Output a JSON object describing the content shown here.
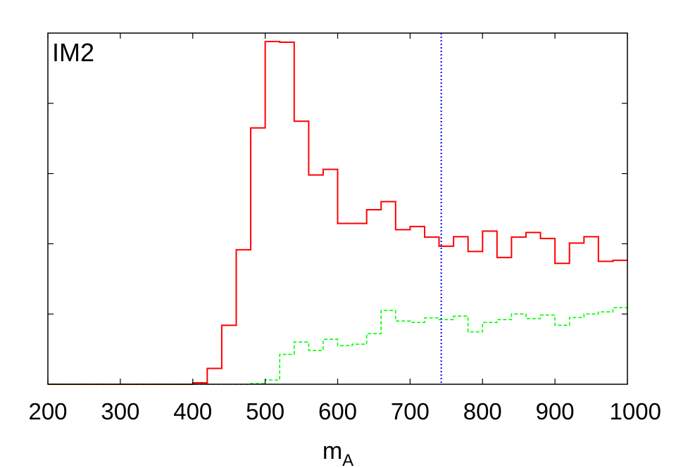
{
  "chart_data": {
    "type": "line",
    "title": "",
    "panel_label": "IM2",
    "xlabel": {
      "main": "m",
      "sub": "A"
    },
    "ylabel": "",
    "xlim": [
      200,
      1000
    ],
    "ylim": [
      0,
      1
    ],
    "x_ticks": [
      200,
      300,
      400,
      500,
      600,
      700,
      800,
      900,
      1000
    ],
    "y_tick_values": [
      0.2,
      0.4,
      0.6,
      0.8
    ],
    "y_tick_labels_shown": false,
    "grid": false,
    "legend": "none",
    "bin_edges": [
      200,
      220,
      240,
      260,
      280,
      300,
      320,
      340,
      360,
      380,
      400,
      420,
      440,
      460,
      480,
      500,
      520,
      540,
      560,
      580,
      600,
      620,
      640,
      660,
      680,
      700,
      720,
      740,
      760,
      780,
      800,
      820,
      840,
      860,
      880,
      900,
      920,
      940,
      960,
      980,
      1000
    ],
    "series": [
      {
        "style": "solid-step",
        "color": "#ff0000",
        "values": [
          0,
          0,
          0,
          0,
          0,
          0,
          0,
          0,
          0,
          0,
          0.004,
          0.045,
          0.168,
          0.383,
          0.73,
          0.976,
          0.974,
          0.749,
          0.596,
          0.612,
          0.458,
          0.458,
          0.497,
          0.52,
          0.44,
          0.449,
          0.419,
          0.393,
          0.42,
          0.378,
          0.436,
          0.361,
          0.419,
          0.432,
          0.415,
          0.344,
          0.402,
          0.42,
          0.35,
          0.353
        ]
      },
      {
        "style": "dashed-step",
        "color": "#00ff00",
        "values": [
          0,
          0,
          0,
          0,
          0,
          0,
          0,
          0,
          0,
          0,
          0,
          0,
          0,
          0,
          0.002,
          0.012,
          0.085,
          0.12,
          0.096,
          0.128,
          0.11,
          0.114,
          0.144,
          0.21,
          0.18,
          0.176,
          0.189,
          0.184,
          0.194,
          0.149,
          0.176,
          0.184,
          0.2,
          0.187,
          0.197,
          0.168,
          0.19,
          0.2,
          0.206,
          0.218
        ]
      }
    ],
    "reference_lines": [
      {
        "orientation": "vertical",
        "x": 743,
        "color": "#0000ff",
        "style": "dotted"
      }
    ]
  }
}
